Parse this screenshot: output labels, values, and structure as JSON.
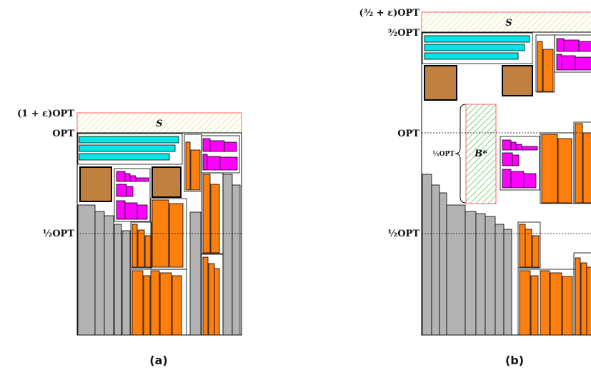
{
  "panel_a": {
    "caption": "(a)",
    "labels": {
      "top": "(1 + ε)OPT",
      "opt": "OPT",
      "half": "½OPT"
    },
    "strip_label": "S"
  },
  "panel_b": {
    "caption": "(b)",
    "labels": {
      "top": "(³⁄₂ + ε)OPT",
      "three_half": "³⁄₂OPT",
      "opt": "OPT",
      "half": "½OPT",
      "brace": "½OPT"
    },
    "strip_label": "S",
    "box_label": "B*"
  },
  "colors": {
    "gray": "#b3b3b3",
    "orange": "#ff7f0e",
    "magenta": "#ff00ff",
    "cyan": "#00e5e5",
    "brown": "#c08040",
    "hatch_yellow": "#e0e060",
    "hatch_green": "#40c040",
    "strip_border": "#ff6060"
  }
}
